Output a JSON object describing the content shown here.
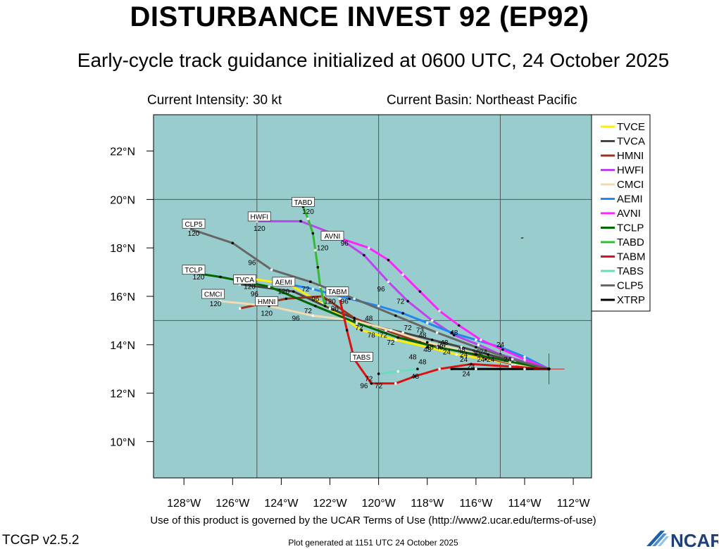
{
  "header": {
    "title": "DISTURBANCE INVEST 92 (EP92)",
    "subtitle": "Early-cycle track guidance initialized at 0600 UTC, 24 October 2025",
    "current_intensity": "Current Intensity: 30 kt",
    "current_basin": "Current Basin: Northeast Pacific"
  },
  "footer": {
    "terms": "Use of this product is governed by the UCAR Terms of Use (http://www2.ucar.edu/terms-of-use)",
    "version": "TCGP v2.5.2",
    "generated": "Plot generated at 1151 UTC   24 October 2025",
    "logo_text": "NCAR"
  },
  "colors": {
    "ocean": "#99cccc",
    "grid": "#555555",
    "TVCE": "#ffee00",
    "TVCA": "#444444",
    "HMNI": "#993322",
    "HWFI": "#bb44ee",
    "CMCI": "#f0dcb0",
    "AEMI": "#2288ee",
    "AVNI": "#ff22ff",
    "TCLP": "#006600",
    "TABD": "#33bb33",
    "TABM": "#dd1111",
    "TABS": "#66ddbb",
    "CLP5": "#666666",
    "XTRP": "#000000"
  },
  "chart_data": {
    "type": "line",
    "xlim": [
      -129.25,
      -111.25
    ],
    "ylim": [
      8.5,
      23.5
    ],
    "xticks": [
      -128,
      -126,
      -124,
      -122,
      -120,
      -118,
      -116,
      -114,
      -112
    ],
    "xtick_labels": [
      "128°W",
      "126°W",
      "124°W",
      "122°W",
      "120°W",
      "118°W",
      "116°W",
      "114°W",
      "112°W"
    ],
    "yticks": [
      10,
      12,
      14,
      16,
      18,
      20,
      22
    ],
    "ytick_labels": [
      "10°N",
      "12°N",
      "14°N",
      "16°N",
      "18°N",
      "20°N",
      "22°N"
    ],
    "grid_lon": [
      -125,
      -120,
      -115
    ],
    "grid_lat": [
      15,
      20
    ],
    "legend_position": "right",
    "initial_position": {
      "lon": -113.0,
      "lat": 13.0
    },
    "series": [
      {
        "name": "TVCE",
        "points": [
          [
            -113.0,
            13.0
          ],
          [
            -114.4,
            13.2
          ],
          [
            -115.6,
            13.4
          ],
          [
            -116.8,
            13.6
          ],
          [
            -118.0,
            13.9
          ],
          [
            -119.3,
            14.2
          ],
          [
            -120.7,
            14.6
          ],
          [
            -122.3,
            15.7
          ],
          [
            -123.7,
            16.5
          ],
          [
            -125.7,
            16.8
          ]
        ]
      },
      {
        "name": "TVCA",
        "points": [
          [
            -113.0,
            13.0
          ],
          [
            -114.4,
            13.3
          ],
          [
            -115.5,
            13.6
          ],
          [
            -116.6,
            13.9
          ],
          [
            -117.8,
            14.2
          ],
          [
            -119.0,
            14.5
          ],
          [
            -120.3,
            14.8
          ],
          [
            -122.0,
            15.5
          ],
          [
            -123.5,
            16.2
          ],
          [
            -125.7,
            16.5
          ]
        ]
      },
      {
        "name": "HMNI",
        "points": [
          [
            -113.0,
            13.0
          ],
          [
            -114.5,
            13.2
          ],
          [
            -115.7,
            13.5
          ],
          [
            -117.0,
            13.8
          ],
          [
            -118.3,
            14.1
          ],
          [
            -119.7,
            14.6
          ],
          [
            -121.0,
            15.1
          ],
          [
            -122.3,
            16.0
          ],
          [
            -123.8,
            15.9
          ],
          [
            -125.7,
            15.5
          ]
        ]
      },
      {
        "name": "HWFI",
        "points": [
          [
            -113.0,
            13.0
          ],
          [
            -114.0,
            13.3
          ],
          [
            -115.0,
            13.6
          ],
          [
            -115.9,
            14.0
          ],
          [
            -116.9,
            14.4
          ],
          [
            -117.8,
            15.0
          ],
          [
            -118.8,
            15.8
          ],
          [
            -119.6,
            16.6
          ],
          [
            -120.6,
            17.7
          ],
          [
            -121.9,
            18.6
          ],
          [
            -123.2,
            19.1
          ],
          [
            -125.0,
            19.1
          ]
        ]
      },
      {
        "name": "CMCI",
        "points": [
          [
            -113.0,
            13.0
          ],
          [
            -114.4,
            13.2
          ],
          [
            -115.5,
            13.5
          ],
          [
            -116.7,
            13.8
          ],
          [
            -118.0,
            14.1
          ],
          [
            -119.5,
            14.6
          ],
          [
            -121.0,
            15.0
          ],
          [
            -122.7,
            15.2
          ],
          [
            -124.5,
            15.6
          ],
          [
            -126.5,
            15.8
          ]
        ]
      },
      {
        "name": "AEMI",
        "points": [
          [
            -113.0,
            13.0
          ],
          [
            -114.0,
            13.5
          ],
          [
            -115.0,
            13.9
          ],
          [
            -116.0,
            14.2
          ],
          [
            -117.0,
            14.5
          ],
          [
            -118.0,
            14.9
          ],
          [
            -119.0,
            15.3
          ],
          [
            -120.0,
            15.6
          ],
          [
            -121.2,
            15.9
          ],
          [
            -122.7,
            16.3
          ],
          [
            -124.2,
            16.6
          ]
        ]
      },
      {
        "name": "AVNI",
        "points": [
          [
            -113.0,
            13.0
          ],
          [
            -114.0,
            13.4
          ],
          [
            -114.9,
            13.8
          ],
          [
            -115.8,
            14.2
          ],
          [
            -116.7,
            14.8
          ],
          [
            -117.5,
            15.4
          ],
          [
            -118.3,
            16.2
          ],
          [
            -119.0,
            16.9
          ],
          [
            -119.6,
            17.5
          ],
          [
            -120.4,
            18.0
          ],
          [
            -121.6,
            18.4
          ]
        ]
      },
      {
        "name": "TCLP",
        "points": [
          [
            -113.0,
            13.0
          ],
          [
            -114.6,
            13.3
          ],
          [
            -116.0,
            13.6
          ],
          [
            -117.6,
            13.9
          ],
          [
            -119.2,
            14.3
          ],
          [
            -120.9,
            14.9
          ],
          [
            -122.6,
            15.6
          ],
          [
            -124.5,
            16.4
          ],
          [
            -126.5,
            16.8
          ],
          [
            -127.8,
            17.0
          ]
        ]
      },
      {
        "name": "TABD",
        "points": [
          [
            -122.2,
            15.6
          ],
          [
            -122.4,
            16.4
          ],
          [
            -122.5,
            17.2
          ],
          [
            -122.6,
            17.9
          ],
          [
            -122.7,
            18.6
          ],
          [
            -122.9,
            19.2
          ],
          [
            -123.1,
            19.7
          ]
        ]
      },
      {
        "name": "TABM",
        "points": [
          [
            -113.0,
            13.0
          ],
          [
            -114.6,
            13.1
          ],
          [
            -116.2,
            13.2
          ],
          [
            -117.5,
            13.0
          ],
          [
            -118.5,
            12.7
          ],
          [
            -119.3,
            12.4
          ],
          [
            -120.3,
            12.4
          ],
          [
            -121.0,
            13.4
          ],
          [
            -121.3,
            14.6
          ],
          [
            -121.6,
            15.9
          ]
        ]
      },
      {
        "name": "TABS",
        "points": [
          [
            -118.4,
            13.0
          ],
          [
            -119.2,
            12.9
          ],
          [
            -120.0,
            12.8
          ]
        ]
      },
      {
        "name": "CLP5",
        "points": [
          [
            -113.0,
            13.0
          ],
          [
            -114.5,
            13.4
          ],
          [
            -116.0,
            13.9
          ],
          [
            -117.6,
            14.5
          ],
          [
            -119.3,
            15.2
          ],
          [
            -121.0,
            15.9
          ],
          [
            -122.8,
            16.6
          ],
          [
            -124.4,
            17.1
          ],
          [
            -126.0,
            18.2
          ],
          [
            -127.8,
            18.8
          ]
        ]
      },
      {
        "name": "XTRP",
        "points": [
          [
            -113.0,
            13.0
          ],
          [
            -114.0,
            13.0
          ],
          [
            -115.0,
            13.0
          ],
          [
            -116.0,
            13.0
          ],
          [
            -117.0,
            13.0
          ]
        ]
      }
    ],
    "box_labels": [
      {
        "text": "TABD",
        "lon": -123.1,
        "lat": 19.9
      },
      {
        "text": "HWFI",
        "lon": -124.9,
        "lat": 19.3
      },
      {
        "text": "CLP5",
        "lon": -127.6,
        "lat": 19.0
      },
      {
        "text": "AVNI",
        "lon": -121.9,
        "lat": 18.5
      },
      {
        "text": "TCLP",
        "lon": -127.6,
        "lat": 17.1
      },
      {
        "text": "TVCA",
        "lon": -125.5,
        "lat": 16.7
      },
      {
        "text": "AEMI",
        "lon": -123.9,
        "lat": 16.6
      },
      {
        "text": "TABM",
        "lon": -121.7,
        "lat": 16.2
      },
      {
        "text": "CMCI",
        "lon": -126.8,
        "lat": 16.1
      },
      {
        "text": "HMNI",
        "lon": -124.6,
        "lat": 15.8
      },
      {
        "text": "TABS",
        "lon": -120.7,
        "lat": 13.5
      }
    ],
    "hour_labels": [
      {
        "text": "120",
        "lon": -122.9,
        "lat": 19.4
      },
      {
        "text": "120",
        "lon": -124.9,
        "lat": 18.7
      },
      {
        "text": "120",
        "lon": -127.6,
        "lat": 18.5
      },
      {
        "text": "96",
        "lon": -125.2,
        "lat": 17.3
      },
      {
        "text": "120",
        "lon": -122.3,
        "lat": 17.9
      },
      {
        "text": "96",
        "lon": -121.4,
        "lat": 18.1
      },
      {
        "text": "120",
        "lon": -127.4,
        "lat": 16.7
      },
      {
        "text": "120",
        "lon": -125.3,
        "lat": 16.3
      },
      {
        "text": "120",
        "lon": -123.9,
        "lat": 16.1
      },
      {
        "text": "72",
        "lon": -123.0,
        "lat": 16.2
      },
      {
        "text": "96",
        "lon": -125.1,
        "lat": 16.0
      },
      {
        "text": "96",
        "lon": -122.6,
        "lat": 15.8
      },
      {
        "text": "120",
        "lon": -126.7,
        "lat": 15.6
      },
      {
        "text": "120",
        "lon": -124.6,
        "lat": 15.2
      },
      {
        "text": "72",
        "lon": -122.9,
        "lat": 15.3
      },
      {
        "text": "96",
        "lon": -123.4,
        "lat": 15.0
      },
      {
        "text": "120",
        "lon": -122.0,
        "lat": 15.7
      },
      {
        "text": "96",
        "lon": -121.8,
        "lat": 15.4
      },
      {
        "text": "96",
        "lon": -121.4,
        "lat": 15.7
      },
      {
        "text": "48",
        "lon": -120.4,
        "lat": 15.0
      },
      {
        "text": "72",
        "lon": -120.8,
        "lat": 14.6
      },
      {
        "text": "78",
        "lon": -120.3,
        "lat": 14.3
      },
      {
        "text": "72",
        "lon": -119.8,
        "lat": 14.3
      },
      {
        "text": "72",
        "lon": -119.5,
        "lat": 14.0
      },
      {
        "text": "72",
        "lon": -118.8,
        "lat": 14.6
      },
      {
        "text": "96",
        "lon": -119.9,
        "lat": 16.2
      },
      {
        "text": "72",
        "lon": -119.1,
        "lat": 15.7
      },
      {
        "text": "73",
        "lon": -118.3,
        "lat": 14.5
      },
      {
        "text": "48",
        "lon": -118.2,
        "lat": 14.3
      },
      {
        "text": "48",
        "lon": -117.9,
        "lat": 13.8
      },
      {
        "text": "48",
        "lon": -116.9,
        "lat": 14.4
      },
      {
        "text": "48",
        "lon": -117.3,
        "lat": 14.0
      },
      {
        "text": "48",
        "lon": -117.5,
        "lat": 13.8
      },
      {
        "text": "48",
        "lon": -116.6,
        "lat": 13.7
      },
      {
        "text": "48",
        "lon": -118.0,
        "lat": 13.7
      },
      {
        "text": "48",
        "lon": -118.6,
        "lat": 13.4
      },
      {
        "text": "48",
        "lon": -118.2,
        "lat": 13.2
      },
      {
        "text": "48",
        "lon": -118.5,
        "lat": 12.6
      },
      {
        "text": "24",
        "lon": -117.4,
        "lat": 13.9
      },
      {
        "text": "24",
        "lon": -117.2,
        "lat": 13.6
      },
      {
        "text": "24",
        "lon": -116.5,
        "lat": 13.5
      },
      {
        "text": "24",
        "lon": -115.7,
        "lat": 13.6
      },
      {
        "text": "24",
        "lon": -115.8,
        "lat": 13.3
      },
      {
        "text": "24",
        "lon": -115.4,
        "lat": 13.3
      },
      {
        "text": "24",
        "lon": -114.7,
        "lat": 13.3
      },
      {
        "text": "24",
        "lon": -115.0,
        "lat": 13.9
      },
      {
        "text": "24",
        "lon": -116.5,
        "lat": 13.3
      },
      {
        "text": "24",
        "lon": -116.2,
        "lat": 13.0
      },
      {
        "text": "24",
        "lon": -116.4,
        "lat": 12.7
      },
      {
        "text": "36",
        "lon": -116.0,
        "lat": 13.6
      },
      {
        "text": "120",
        "lon": -120.9,
        "lat": 13.5
      },
      {
        "text": "72",
        "lon": -120.4,
        "lat": 12.5
      },
      {
        "text": "96",
        "lon": -120.6,
        "lat": 12.2
      },
      {
        "text": "72",
        "lon": -120.0,
        "lat": 12.2
      }
    ]
  }
}
